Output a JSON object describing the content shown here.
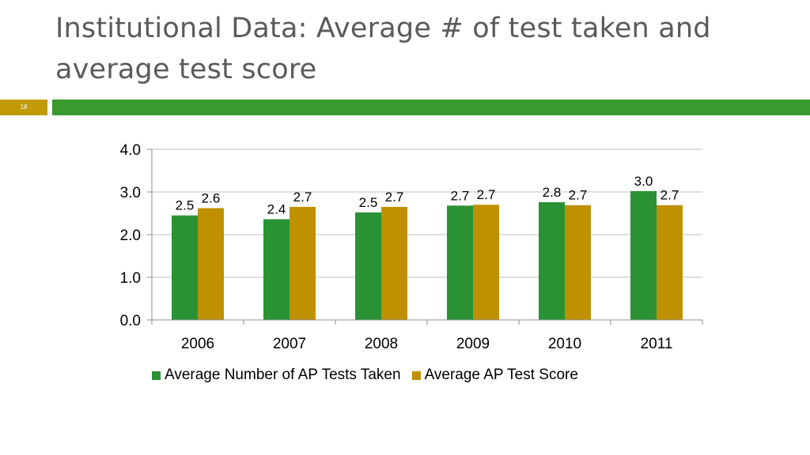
{
  "slide": {
    "title": "Institutional Data: Average # of test taken and average test score",
    "slide_number": "18"
  },
  "colors": {
    "title_rule": "#3a9a2d",
    "number_box": "#c19a06",
    "series_tests": "#2a9234",
    "series_score": "#bf9000"
  },
  "chart_data": {
    "type": "bar",
    "categories": [
      "2006",
      "2007",
      "2008",
      "2009",
      "2010",
      "2011"
    ],
    "series": [
      {
        "name": "Average Number of AP Tests Taken",
        "values": [
          2.45,
          2.36,
          2.52,
          2.68,
          2.76,
          3.02
        ],
        "labels": [
          "2.5",
          "2.4",
          "2.5",
          "2.7",
          "2.8",
          "3.0"
        ]
      },
      {
        "name": "Average AP Test Score",
        "values": [
          2.62,
          2.65,
          2.65,
          2.7,
          2.69,
          2.69
        ],
        "labels": [
          "2.6",
          "2.7",
          "2.7",
          "2.7",
          "2.7",
          "2.7"
        ]
      }
    ],
    "ylim": [
      0,
      4
    ],
    "yticks": [
      "0.0",
      "1.0",
      "2.0",
      "3.0",
      "4.0"
    ],
    "grid": true,
    "legend_position": "bottom",
    "data_labels": true,
    "xlabel": "",
    "ylabel": ""
  }
}
